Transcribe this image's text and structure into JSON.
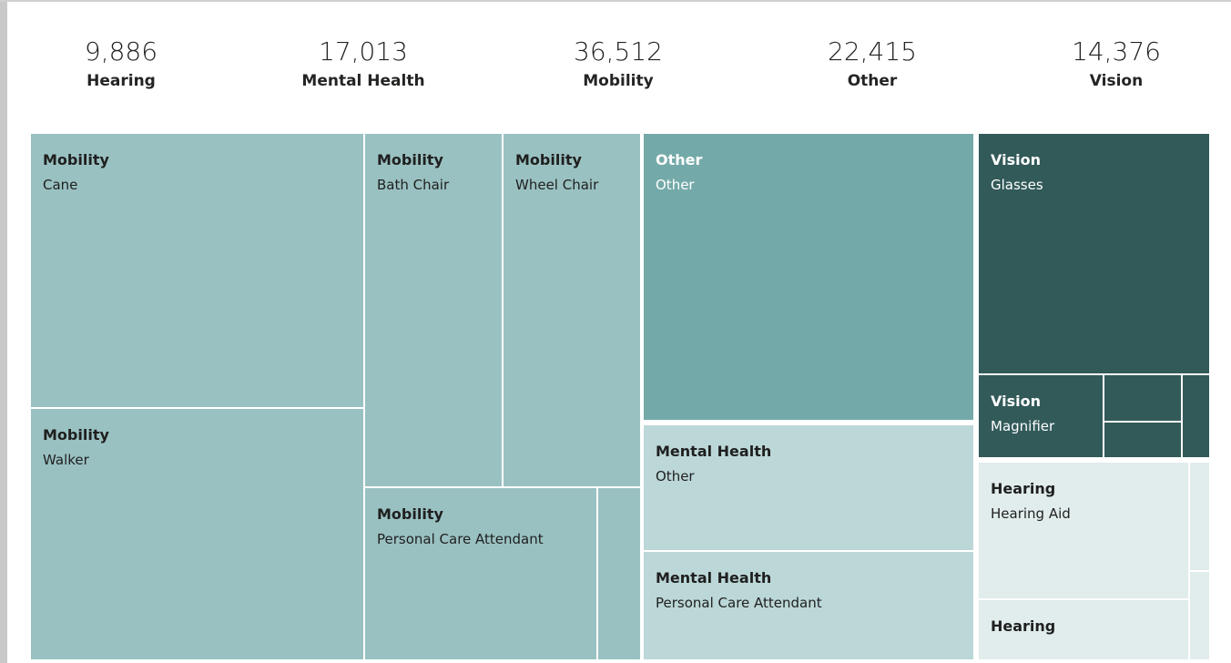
{
  "cards": [
    {
      "value": "9,886",
      "label": "Hearing"
    },
    {
      "value": "17,013",
      "label": "Mental Health"
    },
    {
      "value": "36,512",
      "label": "Mobility"
    },
    {
      "value": "22,415",
      "label": "Other"
    },
    {
      "value": "14,376",
      "label": "Vision"
    }
  ],
  "tiles": [
    {
      "group": "Mobility",
      "item": "Cane"
    },
    {
      "group": "Mobility",
      "item": "Walker"
    },
    {
      "group": "Mobility",
      "item": "Bath Chair"
    },
    {
      "group": "Mobility",
      "item": "Wheel Chair"
    },
    {
      "group": "Mobility",
      "item": "Personal Care Attendant"
    },
    {
      "group": "Other",
      "item": "Other"
    },
    {
      "group": "Mental Health",
      "item": "Other"
    },
    {
      "group": "Mental Health",
      "item": "Personal Care Attendant"
    },
    {
      "group": "Vision",
      "item": "Glasses"
    },
    {
      "group": "Vision",
      "item": "Magnifier"
    },
    {
      "group": "Hearing",
      "item": "Hearing Aid"
    },
    {
      "group": "Hearing"
    }
  ]
}
